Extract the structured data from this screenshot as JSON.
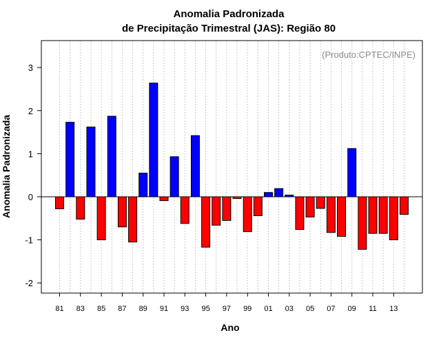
{
  "chart_data": {
    "type": "bar",
    "title": [
      "Anomalia Padronizada",
      "de Precipitação Trimestral (JAS): Região 80"
    ],
    "xlabel": "Ano",
    "ylabel": "Anomalia Padronizada",
    "annotation": "(Produto:CPTEC/INPE)",
    "ylim": [
      -2.25,
      3.65
    ],
    "yticks": [
      -2,
      -1,
      0,
      1,
      2,
      3
    ],
    "xtick_labels": [
      "81",
      "83",
      "85",
      "87",
      "89",
      "91",
      "93",
      "95",
      "97",
      "99",
      "01",
      "03",
      "05",
      "07",
      "09",
      "11",
      "13"
    ],
    "grid": "vertical dotted",
    "positive_color": "#0000ff",
    "negative_color": "#ff0000",
    "categories": [
      "1981",
      "1982",
      "1983",
      "1984",
      "1985",
      "1986",
      "1987",
      "1988",
      "1989",
      "1990",
      "1991",
      "1992",
      "1993",
      "1994",
      "1995",
      "1996",
      "1997",
      "1998",
      "1999",
      "2000",
      "2001",
      "2002",
      "2003",
      "2004",
      "2005",
      "2006",
      "2007",
      "2008",
      "2009",
      "2010",
      "2011",
      "2012",
      "2013",
      "2014"
    ],
    "values": [
      -0.28,
      1.73,
      -0.52,
      1.62,
      -1.0,
      1.87,
      -0.7,
      -1.05,
      0.55,
      2.64,
      -0.09,
      0.93,
      -0.62,
      1.42,
      -1.17,
      -0.66,
      -0.55,
      -0.04,
      -0.81,
      -0.44,
      0.1,
      0.19,
      0.04,
      -0.76,
      -0.47,
      -0.27,
      -0.83,
      -0.92,
      1.12,
      -1.22,
      -0.85,
      -0.85,
      -1.0,
      -0.41
    ]
  }
}
